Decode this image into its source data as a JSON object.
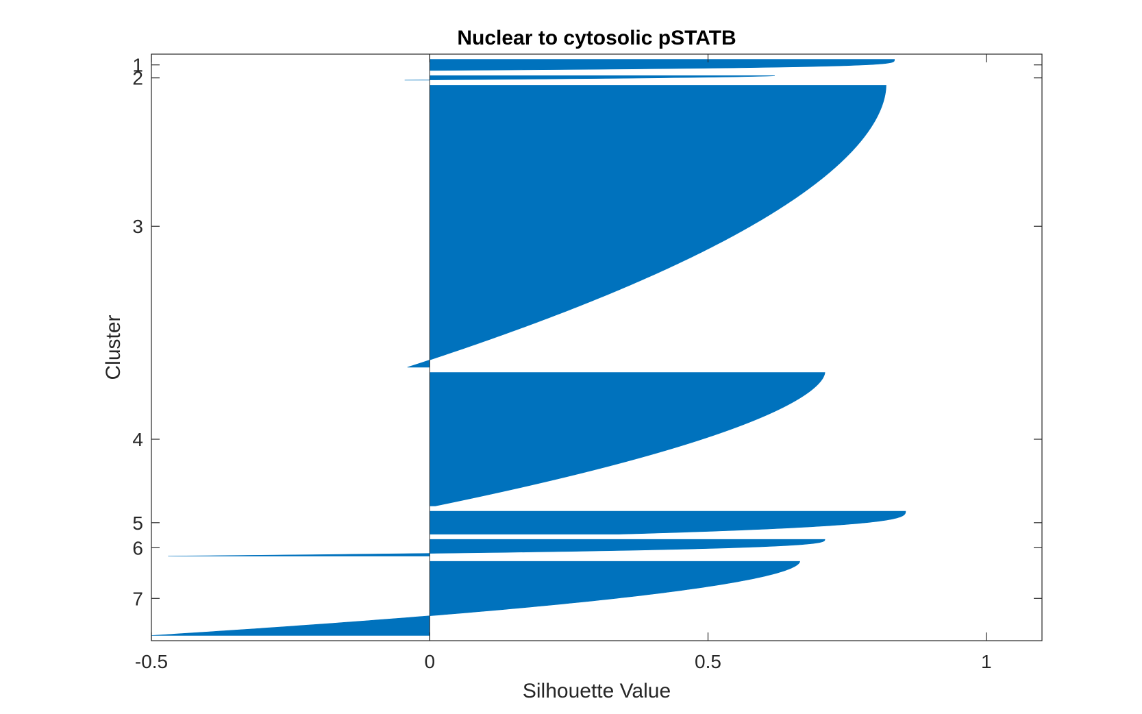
{
  "chart_data": {
    "type": "bar",
    "orientation": "horizontal",
    "title": "Nuclear to cytosolic pSTATB",
    "xlabel": "Silhouette Value",
    "ylabel": "Cluster",
    "xlim": [
      -0.5,
      1.1
    ],
    "xticks": [
      -0.5,
      0,
      0.5,
      1
    ],
    "xtick_labels": [
      "-0.5",
      "0",
      "0.5",
      "1"
    ],
    "ytick_labels": [
      "1",
      "2",
      "3",
      "4",
      "5",
      "6",
      "7"
    ],
    "grid": false,
    "bar_color": "#0072BD",
    "clusters": [
      {
        "name": "1",
        "n": 30,
        "max": 0.835,
        "min": 0.0,
        "shape": 0.25
      },
      {
        "name": "2",
        "n": 12,
        "max": 0.62,
        "min": -0.045,
        "shape": 0.6
      },
      {
        "name": "3",
        "n": 760,
        "max": 0.82,
        "min": -0.04,
        "shape": 0.55
      },
      {
        "name": "4",
        "n": 360,
        "max": 0.71,
        "min": 0.01,
        "shape": 0.6
      },
      {
        "name": "5",
        "n": 62,
        "max": 0.855,
        "min": 0.34,
        "shape": 0.35
      },
      {
        "name": "6",
        "n": 45,
        "max": 0.71,
        "min": -0.47,
        "shape": 0.35
      },
      {
        "name": "7",
        "n": 200,
        "max": 0.665,
        "min": -0.5,
        "shape": 0.55
      }
    ]
  }
}
